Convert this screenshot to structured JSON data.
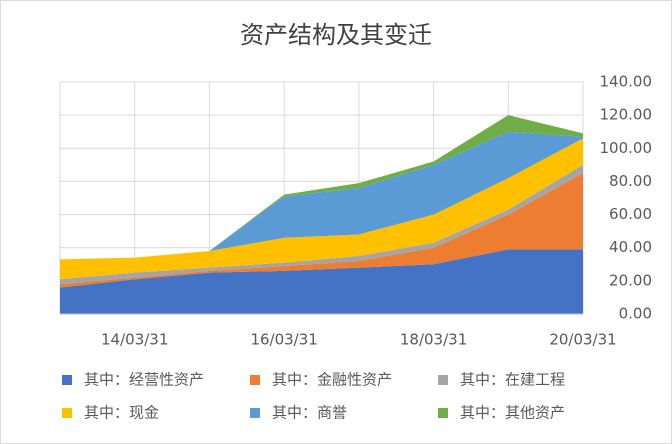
{
  "chart_data": {
    "type": "stacked-area",
    "title": "资产结构及其变迁",
    "categories": [
      null,
      "14/03/31",
      null,
      "16/03/31",
      null,
      "18/03/31",
      null,
      "20/03/31"
    ],
    "series": [
      {
        "name": "其中：经营性资产",
        "color": "#4472c4",
        "values": [
          16,
          21,
          25,
          26,
          28,
          30,
          39,
          39
        ]
      },
      {
        "name": "其中：金融性资产",
        "color": "#ed7d31",
        "values": [
          2,
          1,
          1,
          3,
          4,
          10,
          21,
          46
        ]
      },
      {
        "name": "其中：在建工程",
        "color": "#a5a5a5",
        "values": [
          3,
          3,
          2,
          2,
          3,
          3,
          3,
          5
        ]
      },
      {
        "name": "其中：现金",
        "color": "#ffc000",
        "values": [
          12,
          9,
          10,
          15,
          13,
          17,
          19,
          16
        ]
      },
      {
        "name": "其中：商誉",
        "color": "#5b9bd5",
        "values": [
          0,
          0,
          0,
          25,
          28,
          30,
          28,
          1
        ]
      },
      {
        "name": "其中：其他资产",
        "color": "#70ad47",
        "values": [
          0,
          0,
          0,
          1,
          3,
          2,
          10,
          2
        ]
      }
    ],
    "ylim": [
      0,
      140
    ],
    "yticks": [
      {
        "value": 0,
        "label": "0.00"
      },
      {
        "value": 20,
        "label": "20.00"
      },
      {
        "value": 40,
        "label": "40.00"
      },
      {
        "value": 60,
        "label": "60.00"
      },
      {
        "value": 80,
        "label": "80.00"
      },
      {
        "value": 100,
        "label": "100.00"
      },
      {
        "value": 120,
        "label": "120.00"
      },
      {
        "value": 140,
        "label": "140.00"
      }
    ],
    "grid": true,
    "legend": "bottom"
  }
}
